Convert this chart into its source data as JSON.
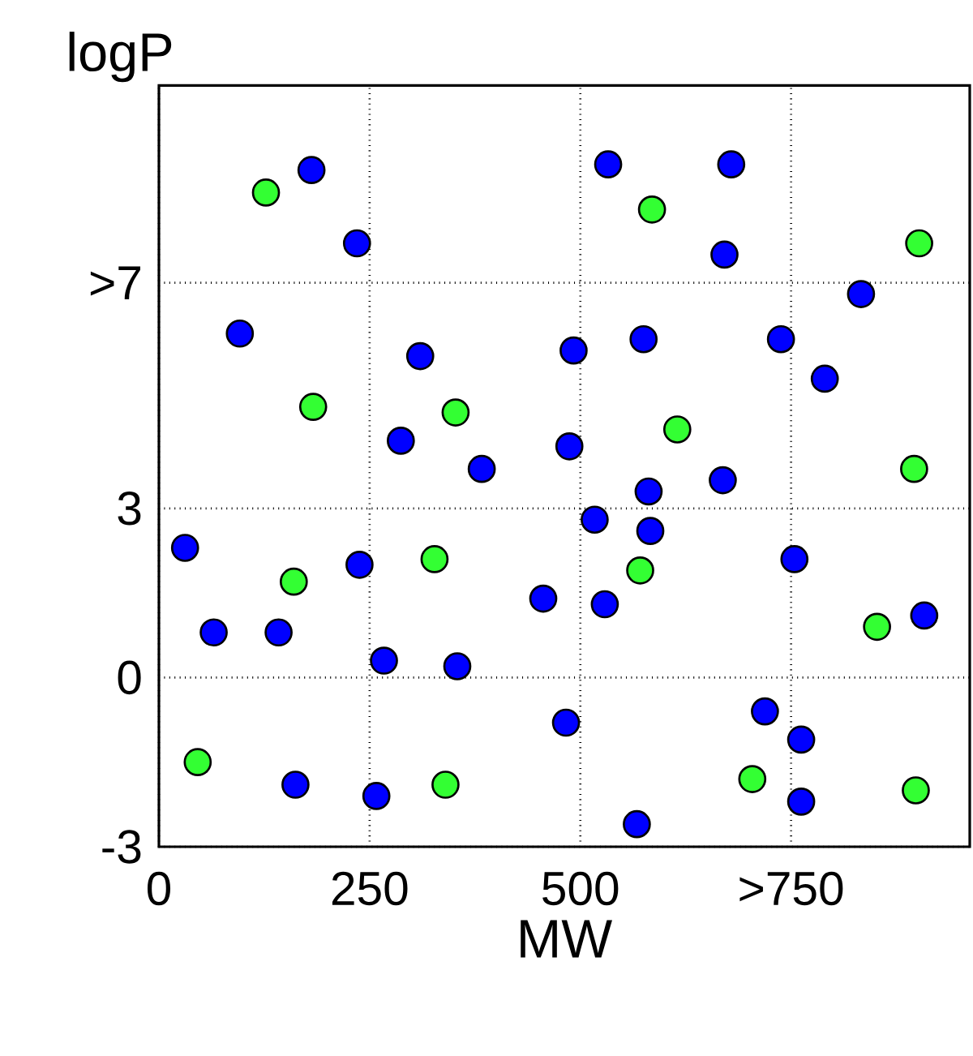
{
  "chart_data": {
    "type": "scatter",
    "xlabel": "MW",
    "ylabel": "logP",
    "xlim": [
      0,
      962
    ],
    "ylim": [
      -3,
      10.5
    ],
    "xticks": [
      0,
      250,
      500,
      {
        "value": 750,
        "label": ">750"
      }
    ],
    "yticks": [
      -3,
      0,
      3,
      {
        "value": 7,
        "label": ">7"
      }
    ],
    "grid": true,
    "marker": "circle",
    "series": [
      {
        "color": "#33ff33",
        "x": [
          127,
          183,
          46,
          160,
          327,
          352,
          340,
          585,
          615,
          571,
          704,
          852,
          902,
          896,
          898
        ],
        "values": [
          8.6,
          4.8,
          -1.5,
          1.7,
          2.1,
          4.7,
          -1.9,
          8.3,
          4.4,
          1.9,
          -1.8,
          0.9,
          7.7,
          3.7,
          -2.0
        ]
      },
      {
        "color": "#0000ff",
        "x": [
          181,
          235,
          96,
          287,
          310,
          383,
          31,
          238,
          65,
          142,
          267,
          354,
          162,
          258,
          533,
          679,
          492,
          487,
          575,
          581,
          671,
          669,
          517,
          583,
          456,
          529,
          833,
          738,
          790,
          754,
          908,
          483,
          719,
          762,
          762,
          567
        ],
        "values": [
          9.0,
          7.7,
          6.1,
          4.2,
          5.7,
          3.7,
          2.3,
          2.0,
          0.8,
          0.8,
          0.3,
          0.2,
          -1.9,
          -2.1,
          9.1,
          9.1,
          5.8,
          4.1,
          6.0,
          3.3,
          7.5,
          3.5,
          2.8,
          2.6,
          1.4,
          1.3,
          6.8,
          6.0,
          5.3,
          2.1,
          1.1,
          -0.8,
          -0.6,
          -1.1,
          -2.2,
          -2.6
        ]
      }
    ]
  }
}
